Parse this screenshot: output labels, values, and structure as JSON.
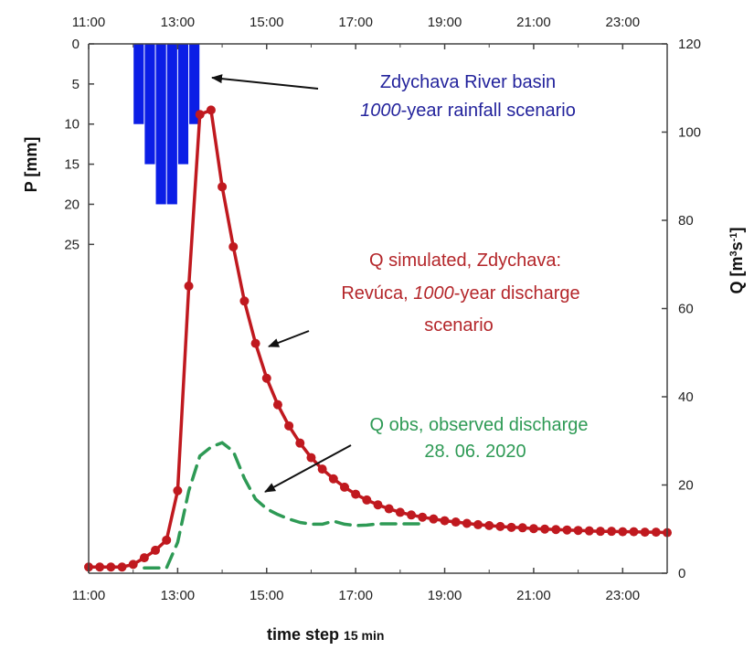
{
  "chart_data": {
    "type": "line",
    "xlabel": "time step",
    "xlabel_unit": "15 min",
    "ylabel_left": "P [mm]",
    "ylabel_right_main": "Q [m",
    "ylabel_right_sup1": "3",
    "ylabel_right_mid": "s",
    "ylabel_right_sup2": "-1",
    "ylabel_right_end": "]",
    "x_ticks": [
      "11:00",
      "13:00",
      "15:00",
      "17:00",
      "19:00",
      "21:00",
      "23:00"
    ],
    "x_range_hours": [
      11,
      24
    ],
    "p_ticks": [
      0,
      5,
      10,
      15,
      20,
      25
    ],
    "p_range": [
      0,
      66
    ],
    "q_ticks": [
      0,
      20,
      40,
      60,
      80,
      100,
      120
    ],
    "q_range": [
      0,
      120
    ],
    "rainfall": {
      "label": "P [mm]",
      "color": "#0b1ee6",
      "time_hours": [
        12.0,
        12.25,
        12.5,
        12.75,
        13.0,
        13.25
      ],
      "values": [
        10,
        15,
        20,
        20,
        15,
        10
      ]
    },
    "series": [
      {
        "name": "Q simulated",
        "color": "#c0191f",
        "style": "solid-markers",
        "time_hours": [
          11.0,
          11.25,
          11.5,
          11.75,
          12.0,
          12.25,
          12.5,
          12.75,
          13.0,
          13.25,
          13.5,
          13.75,
          14.0,
          14.25,
          14.5,
          14.75,
          15.0,
          15.25,
          15.5,
          15.75,
          16.0,
          16.25,
          16.5,
          16.75,
          17.0,
          17.25,
          17.5,
          17.75,
          18.0,
          18.25,
          18.5,
          18.75,
          19.0,
          19.25,
          19.5,
          19.75,
          20.0,
          20.25,
          20.5,
          20.75,
          21.0,
          21.25,
          21.5,
          21.75,
          22.0,
          22.25,
          22.5,
          22.75,
          23.0,
          23.25,
          23.5,
          23.75,
          24.0
        ],
        "values": [
          1.4,
          1.4,
          1.4,
          1.4,
          2.0,
          3.5,
          5.2,
          7.5,
          18.7,
          65.1,
          104.0,
          105.0,
          87.6,
          74.0,
          61.7,
          52.1,
          44.2,
          38.2,
          33.4,
          29.5,
          26.2,
          23.6,
          21.4,
          19.5,
          17.9,
          16.6,
          15.5,
          14.6,
          13.8,
          13.2,
          12.7,
          12.3,
          11.9,
          11.6,
          11.3,
          11.0,
          10.8,
          10.6,
          10.4,
          10.3,
          10.1,
          10.0,
          9.9,
          9.8,
          9.7,
          9.6,
          9.5,
          9.5,
          9.4,
          9.4,
          9.3,
          9.3,
          9.2
        ]
      },
      {
        "name": "Q obs",
        "color": "#2e9a55",
        "style": "dashed",
        "time_hours": [
          12.25,
          12.5,
          12.75,
          13.0,
          13.25,
          13.5,
          13.75,
          14.0,
          14.25,
          14.5,
          14.75,
          15.0,
          15.25,
          15.5,
          15.75,
          16.0,
          16.25,
          16.5,
          16.75,
          17.0,
          17.25,
          17.5,
          18.0,
          18.5
        ],
        "values": [
          1.2,
          1.2,
          1.2,
          7.0,
          18.7,
          26.6,
          28.6,
          29.6,
          27.6,
          21.5,
          16.8,
          14.6,
          13.3,
          12.3,
          11.5,
          11.1,
          11.1,
          11.8,
          11.1,
          10.8,
          10.9,
          11.2,
          11.2,
          11.2
        ]
      }
    ],
    "annotations": {
      "rain_line1": "Zdychava River basin",
      "rain_line2_em": "1000",
      "rain_line2_rest": "-year rainfall scenario",
      "sim_line1": "Q  simulated, Zdychava:",
      "sim_line2_pre": "Revúca, ",
      "sim_line2_em": "1000",
      "sim_line2_rest": "-year discharge",
      "sim_line3": "scenario",
      "obs_line1": "Q obs, observed discharge",
      "obs_line2": "28. 06. 2020"
    },
    "annotation_colors": {
      "rain": "#23239c",
      "sim": "#b4262a",
      "obs": "#2e9a55",
      "arrow": "#111111"
    },
    "grid": false,
    "legend": "none"
  }
}
